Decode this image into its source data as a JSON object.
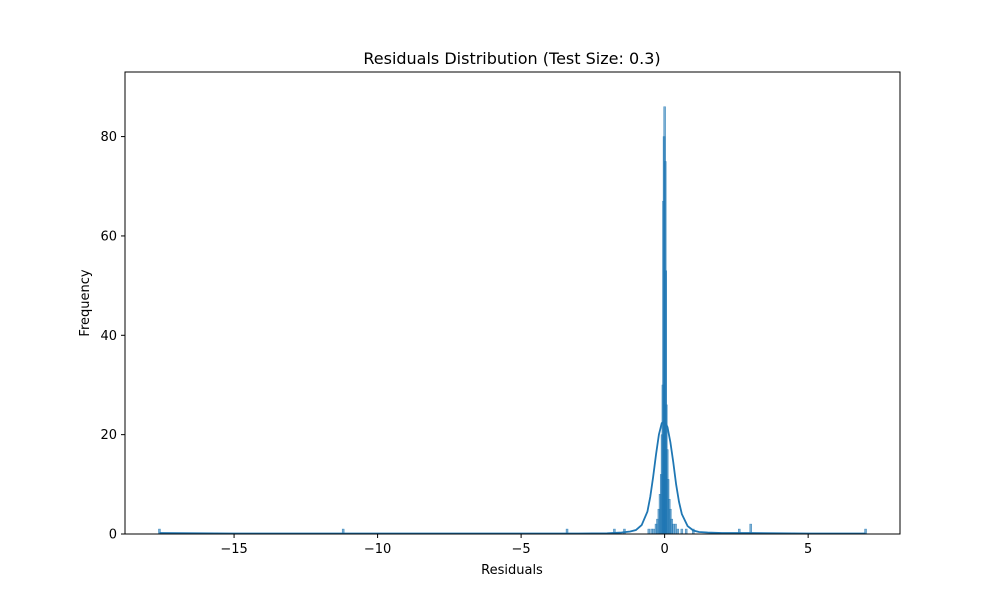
{
  "chart_data": {
    "type": "bar",
    "title": "Residuals Distribution (Test Size: 0.3)",
    "xlabel": "Residuals",
    "ylabel": "Frequency",
    "xlim": [
      -18.8,
      8.2
    ],
    "ylim": [
      0,
      93
    ],
    "x_ticks": [
      -15,
      -10,
      -5,
      0,
      5
    ],
    "x_tick_labels": [
      "−15",
      "−10",
      "−5",
      "0",
      "5"
    ],
    "y_ticks": [
      0,
      20,
      40,
      60,
      80
    ],
    "y_tick_labels": [
      "0",
      "20",
      "40",
      "60",
      "80"
    ],
    "grid": false,
    "legend": "none",
    "series": [
      {
        "kind": "histogram",
        "color": "#1f77b4",
        "opacity": 0.6,
        "bins": [
          {
            "x": -17.6,
            "count": 1
          },
          {
            "x": -11.2,
            "count": 1
          },
          {
            "x": -3.4,
            "count": 1
          },
          {
            "x": -1.75,
            "count": 1
          },
          {
            "x": -1.4,
            "count": 1
          },
          {
            "x": -0.55,
            "count": 1
          },
          {
            "x": -0.45,
            "count": 1
          },
          {
            "x": -0.38,
            "count": 1
          },
          {
            "x": -0.3,
            "count": 2
          },
          {
            "x": -0.25,
            "count": 3
          },
          {
            "x": -0.2,
            "count": 5
          },
          {
            "x": -0.16,
            "count": 8
          },
          {
            "x": -0.12,
            "count": 12
          },
          {
            "x": -0.09,
            "count": 20
          },
          {
            "x": -0.06,
            "count": 30
          },
          {
            "x": -0.04,
            "count": 67
          },
          {
            "x": -0.02,
            "count": 80
          },
          {
            "x": 0.0,
            "count": 86
          },
          {
            "x": 0.02,
            "count": 75
          },
          {
            "x": 0.04,
            "count": 53
          },
          {
            "x": 0.06,
            "count": 26
          },
          {
            "x": 0.09,
            "count": 17
          },
          {
            "x": 0.12,
            "count": 11
          },
          {
            "x": 0.16,
            "count": 7
          },
          {
            "x": 0.2,
            "count": 5
          },
          {
            "x": 0.25,
            "count": 3
          },
          {
            "x": 0.3,
            "count": 2
          },
          {
            "x": 0.38,
            "count": 2
          },
          {
            "x": 0.46,
            "count": 1
          },
          {
            "x": 0.6,
            "count": 1
          },
          {
            "x": 0.75,
            "count": 1
          },
          {
            "x": 1.0,
            "count": 1
          },
          {
            "x": 2.6,
            "count": 1
          },
          {
            "x": 3.0,
            "count": 2
          },
          {
            "x": 7.0,
            "count": 1
          }
        ]
      },
      {
        "kind": "kde",
        "color": "#1f77b4",
        "x": [
          -17.6,
          -15,
          -10,
          -5,
          -3,
          -2,
          -1.5,
          -1.2,
          -1.0,
          -0.8,
          -0.6,
          -0.5,
          -0.4,
          -0.3,
          -0.2,
          -0.1,
          0.0,
          0.1,
          0.2,
          0.3,
          0.4,
          0.5,
          0.6,
          0.8,
          1.0,
          1.2,
          1.5,
          2,
          3,
          5,
          7
        ],
        "y": [
          0.2,
          0.1,
          0.1,
          0.1,
          0.1,
          0.15,
          0.3,
          0.5,
          0.8,
          1.8,
          4.5,
          7.5,
          11.5,
          16.0,
          20.0,
          22.3,
          22.7,
          21.5,
          18.5,
          14.5,
          10.0,
          6.5,
          4.0,
          1.6,
          0.7,
          0.4,
          0.3,
          0.2,
          0.2,
          0.1,
          0.1
        ]
      }
    ]
  }
}
